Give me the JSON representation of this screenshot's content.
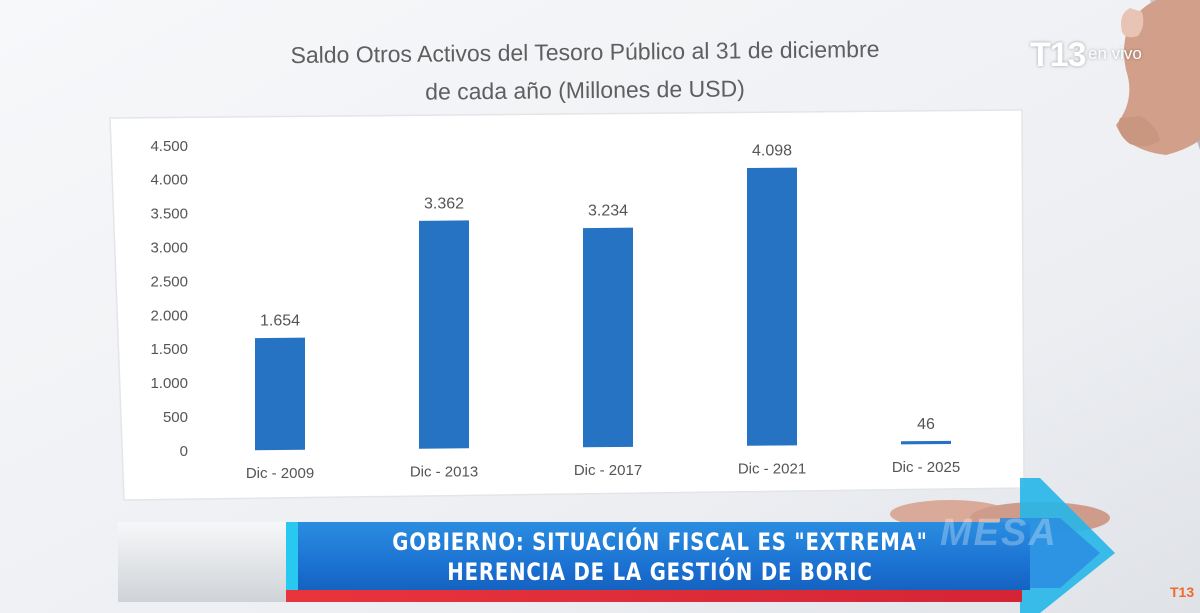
{
  "broadcast": {
    "logo": "T13",
    "live_label": "en vivo",
    "headline_line1": "GOBIERNO: SITUACIÓN FISCAL ES \"EXTREMA\"",
    "headline_line2": "HERENCIA DE LA GESTIÓN DE BORIC",
    "watermark": "MESA",
    "corner_logo": "T13"
  },
  "colors": {
    "bar": "#2673c4",
    "banner": "#1a6fd0",
    "accent_red": "#e0303b",
    "accent_cyan": "#28c8f0"
  },
  "chart_data": {
    "type": "bar",
    "title_line1": "Saldo Otros Activos del Tesoro Público al 31 de diciembre",
    "title_line2": "de cada año (Millones de USD)",
    "categories": [
      "Dic - 2009",
      "Dic - 2013",
      "Dic - 2017",
      "Dic - 2021",
      "Dic - 2025"
    ],
    "values": [
      1654,
      3362,
      3234,
      4098,
      46
    ],
    "value_labels": [
      "1.654",
      "3.362",
      "3.234",
      "4.098",
      "46"
    ],
    "y_ticks": [
      0,
      500,
      1000,
      1500,
      2000,
      2500,
      3000,
      3500,
      4000,
      4500
    ],
    "y_tick_labels": [
      "0",
      "500",
      "1.000",
      "1.500",
      "2.000",
      "2.500",
      "3.000",
      "3.500",
      "4.000",
      "4.500"
    ],
    "ylim": [
      0,
      4500
    ],
    "grid": false,
    "legend": "none"
  }
}
